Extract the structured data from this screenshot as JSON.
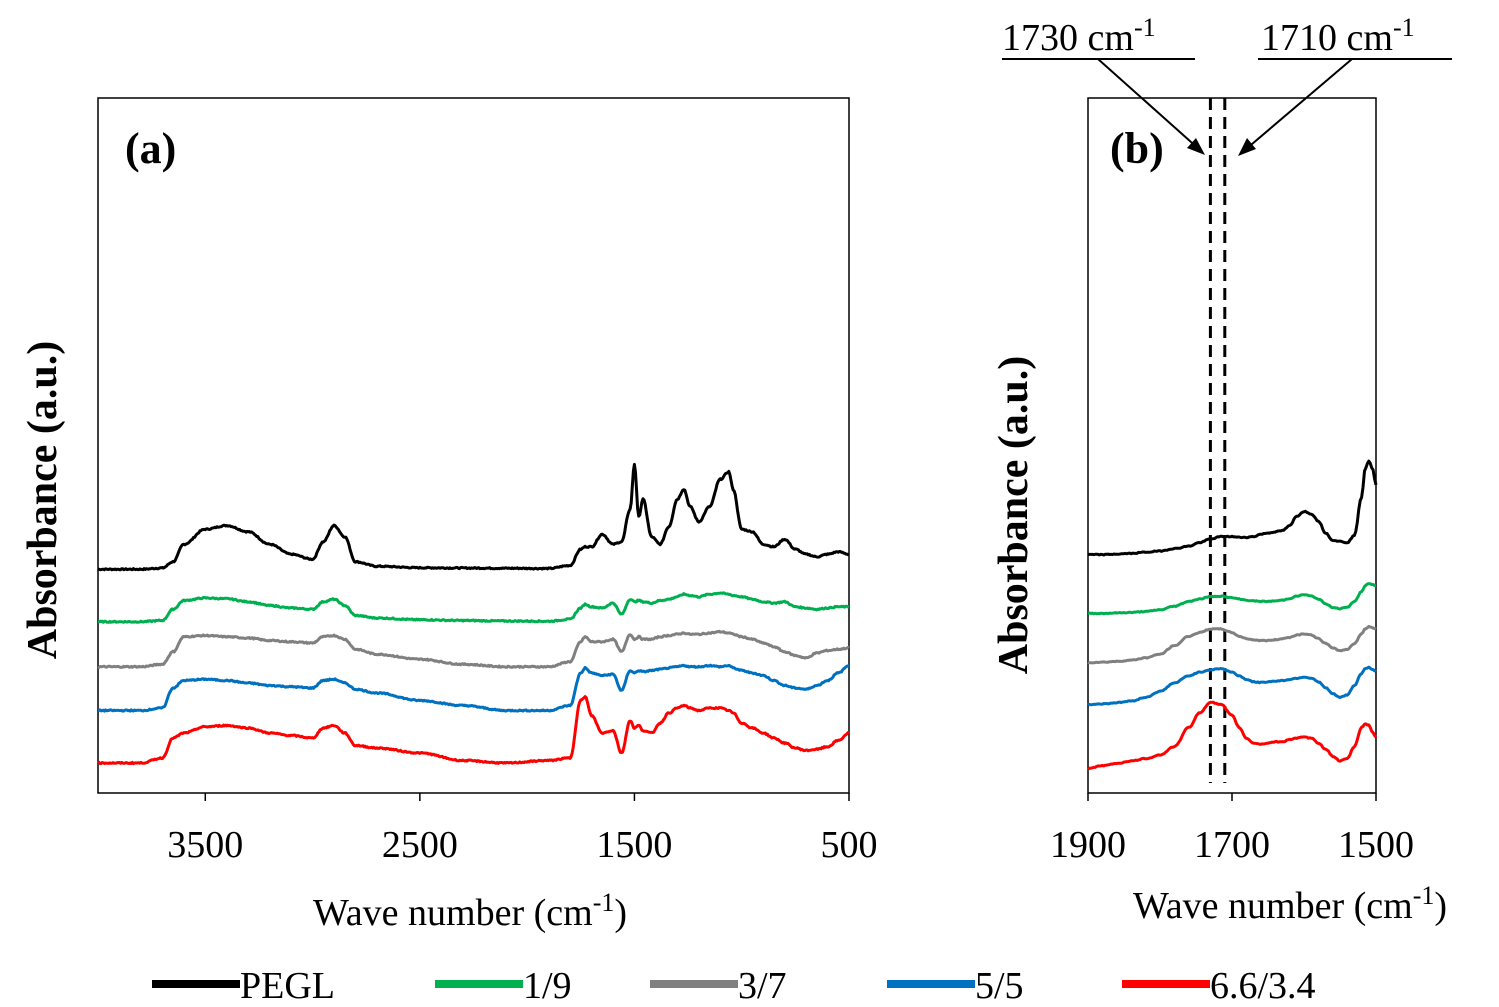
{
  "chart_data": [
    {
      "panel": "(a)",
      "type": "line",
      "xlabel": "Wave number (cm-1)",
      "ylabel": "Absorbance  (a.u.)",
      "xlim": [
        4000,
        500
      ],
      "x_reversed": true,
      "xticks": [
        3500,
        2500,
        1500,
        500
      ],
      "x": [
        4000,
        3900,
        3800,
        3700,
        3650,
        3600,
        3500,
        3400,
        3300,
        3200,
        3100,
        3000,
        2950,
        2900,
        2850,
        2800,
        2700,
        2500,
        2300,
        2100,
        1900,
        1800,
        1750,
        1730,
        1700,
        1650,
        1600,
        1560,
        1520,
        1500,
        1480,
        1460,
        1420,
        1380,
        1340,
        1300,
        1270,
        1240,
        1200,
        1150,
        1100,
        1060,
        1040,
        1000,
        950,
        900,
        850,
        800,
        750,
        700,
        650,
        600,
        550,
        500
      ],
      "series": [
        {
          "name": "PEGL",
          "color": "#000000",
          "offset": 5.95,
          "y": [
            0,
            0,
            0,
            0.05,
            0.3,
            1.0,
            1.6,
            1.75,
            1.5,
            1.0,
            0.6,
            0.4,
            1.1,
            1.75,
            1.3,
            0.3,
            0.12,
            0.06,
            0.05,
            0.04,
            0.03,
            0.15,
            0.8,
            0.9,
            0.9,
            1.4,
            1.0,
            1.1,
            2.4,
            4.2,
            2.1,
            2.8,
            1.3,
            1.0,
            1.7,
            2.8,
            3.2,
            2.5,
            1.9,
            2.5,
            3.6,
            3.9,
            3.2,
            1.6,
            1.5,
            1.0,
            0.9,
            1.2,
            0.8,
            0.6,
            0.5,
            0.6,
            0.7,
            0.6
          ]
        },
        {
          "name": "1/9",
          "color": "#00b050",
          "offset": 3.85,
          "y": [
            0,
            0,
            0,
            0.05,
            0.5,
            0.85,
            0.95,
            0.92,
            0.8,
            0.65,
            0.55,
            0.5,
            0.8,
            0.9,
            0.65,
            0.25,
            0.15,
            0.08,
            0.05,
            0.03,
            0.02,
            0.1,
            0.55,
            0.7,
            0.6,
            0.55,
            0.75,
            0.3,
            0.9,
            0.8,
            0.85,
            0.8,
            0.75,
            0.85,
            0.9,
            1.0,
            1.1,
            1.05,
            1.0,
            1.1,
            1.15,
            1.1,
            1.05,
            1.0,
            0.9,
            0.8,
            0.75,
            0.8,
            0.6,
            0.55,
            0.5,
            0.55,
            0.6,
            0.6
          ]
        },
        {
          "name": "3/7",
          "color": "#808080",
          "offset": 2.05,
          "y": [
            0,
            0,
            0,
            0.1,
            0.6,
            1.2,
            1.25,
            1.2,
            1.15,
            1.05,
            1.0,
            0.95,
            1.2,
            1.25,
            1.1,
            0.7,
            0.5,
            0.3,
            0.1,
            0.0,
            0.0,
            0.2,
            1.0,
            1.2,
            1.0,
            1.0,
            1.1,
            0.6,
            1.3,
            1.1,
            1.2,
            1.1,
            1.1,
            1.2,
            1.25,
            1.3,
            1.35,
            1.3,
            1.3,
            1.35,
            1.4,
            1.35,
            1.3,
            1.2,
            1.1,
            0.95,
            0.8,
            0.6,
            0.45,
            0.35,
            0.55,
            0.65,
            0.7,
            0.75
          ]
        },
        {
          "name": "5/5",
          "color": "#0070c0",
          "offset": 0.3,
          "y": [
            0,
            0,
            0,
            0.1,
            0.9,
            1.2,
            1.25,
            1.2,
            1.1,
            1.0,
            0.95,
            0.9,
            1.2,
            1.25,
            1.1,
            0.85,
            0.7,
            0.4,
            0.2,
            0.0,
            0.0,
            0.2,
            1.5,
            1.7,
            1.5,
            1.4,
            1.45,
            0.8,
            1.6,
            1.5,
            1.6,
            1.55,
            1.6,
            1.65,
            1.7,
            1.75,
            1.8,
            1.75,
            1.75,
            1.8,
            1.75,
            1.8,
            1.7,
            1.6,
            1.5,
            1.4,
            1.2,
            1.0,
            0.9,
            0.85,
            1.0,
            1.2,
            1.5,
            1.8
          ]
        },
        {
          "name": "6.6/3.4",
          "color": "#ff0000",
          "offset": -1.8,
          "y": [
            0,
            0,
            0,
            0.2,
            1.0,
            1.2,
            1.45,
            1.5,
            1.4,
            1.2,
            1.1,
            1.0,
            1.4,
            1.5,
            1.2,
            0.7,
            0.6,
            0.4,
            0.1,
            0.0,
            0.1,
            0.2,
            2.5,
            2.65,
            1.9,
            1.2,
            1.3,
            0.4,
            1.7,
            1.4,
            1.5,
            1.3,
            1.2,
            1.6,
            2.0,
            2.2,
            2.3,
            2.2,
            2.1,
            2.2,
            2.2,
            2.1,
            2.0,
            1.6,
            1.4,
            1.2,
            1.0,
            0.8,
            0.6,
            0.5,
            0.55,
            0.65,
            0.9,
            1.2
          ]
        }
      ]
    },
    {
      "panel": "(b)",
      "type": "line",
      "xlabel": "Wave number (cm-1)",
      "ylabel": "Absorbance  (a.u.)",
      "xlim": [
        1900,
        1500
      ],
      "x_reversed": true,
      "xticks": [
        1900,
        1700,
        1500
      ],
      "x": [
        1900,
        1880,
        1860,
        1840,
        1820,
        1800,
        1780,
        1760,
        1745,
        1730,
        1715,
        1700,
        1690,
        1680,
        1670,
        1660,
        1650,
        1640,
        1630,
        1620,
        1610,
        1600,
        1590,
        1580,
        1570,
        1560,
        1550,
        1540,
        1530,
        1520,
        1515,
        1510,
        1505,
        1500
      ],
      "vlines": [
        {
          "x": 1730,
          "label": "1730 cm-1"
        },
        {
          "x": 1710,
          "label": "1710 cm-1"
        }
      ],
      "series": [
        {
          "name": "PEGL",
          "color": "#000000",
          "offset": 6.9,
          "y": [
            0,
            0,
            0.02,
            0.05,
            0.1,
            0.15,
            0.25,
            0.35,
            0.5,
            0.65,
            0.75,
            0.75,
            0.72,
            0.72,
            0.75,
            0.85,
            0.9,
            0.95,
            1.0,
            1.2,
            1.6,
            1.8,
            1.7,
            1.4,
            0.9,
            0.6,
            0.55,
            0.5,
            0.8,
            2.4,
            3.6,
            3.9,
            3.6,
            2.9
          ]
        },
        {
          "name": "1/9",
          "color": "#00b050",
          "offset": 4.45,
          "y": [
            0,
            0,
            0.02,
            0.04,
            0.08,
            0.15,
            0.3,
            0.5,
            0.6,
            0.7,
            0.72,
            0.65,
            0.6,
            0.55,
            0.52,
            0.5,
            0.5,
            0.52,
            0.55,
            0.62,
            0.72,
            0.78,
            0.72,
            0.6,
            0.4,
            0.25,
            0.2,
            0.25,
            0.5,
            0.9,
            1.15,
            1.25,
            1.2,
            1.15
          ]
        },
        {
          "name": "3/7",
          "color": "#808080",
          "offset": 2.4,
          "y": [
            0,
            0.02,
            0.05,
            0.1,
            0.2,
            0.35,
            0.7,
            1.1,
            1.25,
            1.4,
            1.4,
            1.25,
            1.1,
            1.0,
            0.95,
            0.92,
            0.92,
            0.95,
            1.0,
            1.05,
            1.15,
            1.2,
            1.15,
            1.0,
            0.8,
            0.6,
            0.5,
            0.55,
            0.8,
            1.2,
            1.4,
            1.5,
            1.45,
            1.4
          ]
        },
        {
          "name": "5/5",
          "color": "#0070c0",
          "offset": 0.65,
          "y": [
            0,
            0.03,
            0.08,
            0.15,
            0.3,
            0.55,
            0.9,
            1.2,
            1.35,
            1.45,
            1.5,
            1.35,
            1.2,
            1.05,
            0.95,
            0.92,
            0.95,
            0.98,
            1.0,
            1.05,
            1.1,
            1.15,
            1.1,
            0.95,
            0.7,
            0.45,
            0.3,
            0.4,
            0.8,
            1.3,
            1.5,
            1.55,
            1.45,
            1.4
          ]
        },
        {
          "name": "6.6/3.4",
          "color": "#ff0000",
          "offset": -2.0,
          "y": [
            0,
            0.1,
            0.2,
            0.3,
            0.4,
            0.55,
            0.9,
            1.7,
            2.3,
            2.75,
            2.65,
            2.2,
            1.7,
            1.25,
            1.05,
            1.0,
            1.05,
            1.1,
            1.1,
            1.2,
            1.25,
            1.3,
            1.25,
            1.05,
            0.8,
            0.5,
            0.3,
            0.4,
            0.9,
            1.7,
            1.85,
            1.8,
            1.5,
            1.3
          ]
        }
      ]
    }
  ],
  "legend": {
    "placement": "bottom",
    "items": [
      {
        "label": "PEGL",
        "color": "#000000"
      },
      {
        "label": "1/9",
        "color": "#00b050"
      },
      {
        "label": "3/7",
        "color": "#808080"
      },
      {
        "label": "5/5",
        "color": "#0070c0"
      },
      {
        "label": "6.6/3.4",
        "color": "#ff0000"
      }
    ]
  },
  "labels": {
    "panel_a": "(a)",
    "panel_b": "(b)",
    "ylabel": "Absorbance  (a.u.)",
    "xlabel_text": "Wave number (cm",
    "xlabel_sup": "-1",
    "xlabel_close": ")",
    "annot_1730": "1730 cm",
    "annot_1710": "1710 cm",
    "annot_sup": "-1"
  }
}
